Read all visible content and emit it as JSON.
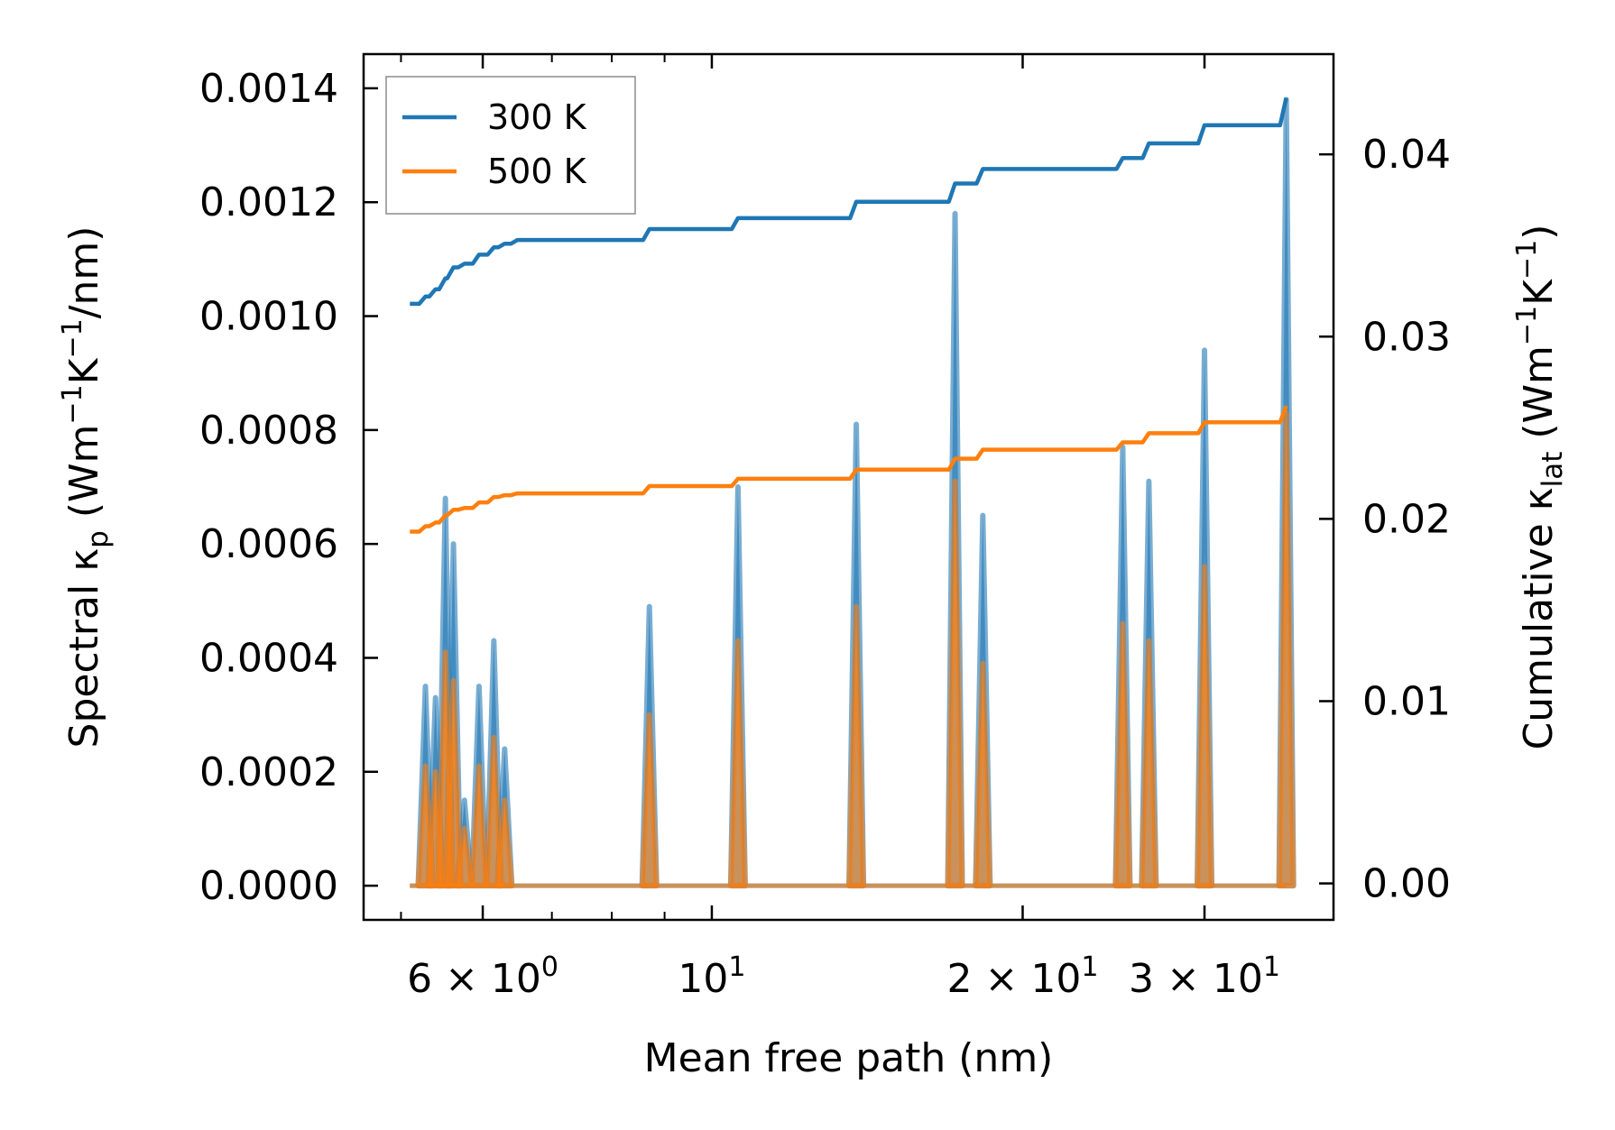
{
  "chart_data": {
    "type": "line",
    "xlabel": "Mean free path (nm)",
    "x_scale": "log",
    "xlim": [
      4.6,
      40
    ],
    "x_ticks": [
      {
        "value": 6,
        "mantissa": "6",
        "exp": "0"
      },
      {
        "value": 10,
        "mantissa": "",
        "exp": "1"
      },
      {
        "value": 20,
        "mantissa": "2",
        "exp": "1"
      },
      {
        "value": 30,
        "mantissa": "3",
        "exp": "1"
      }
    ],
    "minor_x_ticks": [
      5,
      7,
      8,
      9,
      40
    ],
    "left_axis": {
      "label_parts": [
        "Spectral κ",
        "p",
        " (Wm",
        "−1",
        "K",
        "−1",
        "/nm)"
      ],
      "ylim": [
        -6e-05,
        0.00146
      ],
      "ticks": [
        "0.0000",
        "0.0002",
        "0.0004",
        "0.0006",
        "0.0008",
        "0.0010",
        "0.0012",
        "0.0014"
      ]
    },
    "right_axis": {
      "label_parts": [
        "Cumulative κ",
        "lat",
        " (Wm",
        "−1",
        "K",
        "−1",
        ")"
      ],
      "ylim": [
        -0.002,
        0.0455
      ],
      "ticks": [
        "0.00",
        "0.01",
        "0.02",
        "0.03",
        "0.04"
      ]
    },
    "legend": {
      "position": "top-left",
      "entries": [
        "300 K",
        "500 K"
      ]
    },
    "colors": {
      "300 K": "#1f77b4",
      "500 K": "#ff7f0e"
    },
    "spectral_series": [
      {
        "name": "300 K",
        "axis": "left",
        "x": [
          5.1,
          5.28,
          5.4,
          5.52,
          5.62,
          5.76,
          5.95,
          6.15,
          6.3,
          6.48,
          6.85,
          8.7,
          10.6,
          13.8,
          17.2,
          18.3,
          25.0,
          26.5,
          30.0,
          36.0
        ],
        "y": [
          0,
          0.00035,
          0.00033,
          0.00068,
          0.0006,
          0.00015,
          0.00035,
          0.00043,
          0.00024,
          0,
          0,
          0.00049,
          0.0007,
          0.00081,
          0.00118,
          0.00065,
          0.00077,
          0.00071,
          0.00094,
          0.00138
        ]
      },
      {
        "name": "500 K",
        "axis": "left",
        "x": [
          5.1,
          5.28,
          5.4,
          5.52,
          5.62,
          5.76,
          5.95,
          6.15,
          6.3,
          6.48,
          6.85,
          8.7,
          10.6,
          13.8,
          17.2,
          18.3,
          25.0,
          26.5,
          30.0,
          36.0
        ],
        "y": [
          0,
          0.00021,
          0.0002,
          0.00041,
          0.00036,
          0.0001,
          0.00021,
          0.00026,
          0.00015,
          0,
          0,
          0.0003,
          0.00043,
          0.00049,
          0.00071,
          0.00039,
          0.00046,
          0.00043,
          0.00056,
          0.00083
        ]
      }
    ],
    "cumulative_series": [
      {
        "name": "300 K",
        "axis": "right",
        "x": [
          5.1,
          5.28,
          5.4,
          5.52,
          5.62,
          5.76,
          5.95,
          6.15,
          6.3,
          6.48,
          6.85,
          8.7,
          10.6,
          13.8,
          17.2,
          18.3,
          25.0,
          26.5,
          30.0,
          36.0
        ],
        "y": [
          0.0318,
          0.0322,
          0.0326,
          0.0332,
          0.0338,
          0.034,
          0.0345,
          0.0349,
          0.0351,
          0.0353,
          0.0353,
          0.0359,
          0.0365,
          0.0374,
          0.0384,
          0.0392,
          0.0398,
          0.0406,
          0.0416,
          0.0431
        ]
      },
      {
        "name": "500 K",
        "axis": "right",
        "x": [
          5.1,
          5.28,
          5.4,
          5.52,
          5.62,
          5.76,
          5.95,
          6.15,
          6.3,
          6.48,
          6.85,
          8.7,
          10.6,
          13.8,
          17.2,
          18.3,
          25.0,
          26.5,
          30.0,
          36.0
        ],
        "y": [
          0.0193,
          0.0196,
          0.0198,
          0.0202,
          0.0205,
          0.0206,
          0.0209,
          0.0212,
          0.0213,
          0.0214,
          0.0214,
          0.0218,
          0.0222,
          0.0227,
          0.0233,
          0.0238,
          0.0242,
          0.0247,
          0.0253,
          0.0262
        ]
      }
    ]
  }
}
